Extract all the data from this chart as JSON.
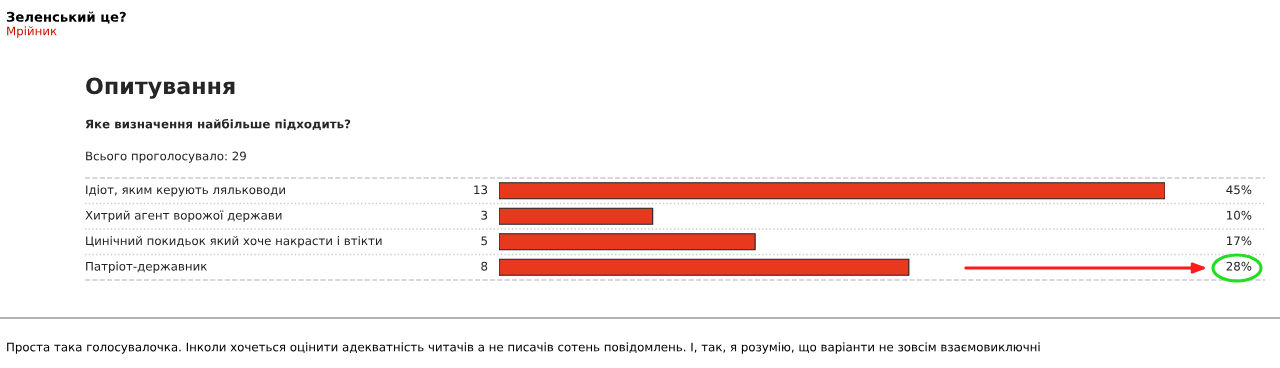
{
  "chart_data": {
    "type": "bar",
    "orientation": "horizontal",
    "title": "Опитування",
    "subtitle": "Яке визначення найбільше підходить?",
    "categories": [
      "Ідіот, яким керують ляльководи",
      "Хитрий агент ворожої держави",
      "Цинічний покидьок який хоче накрасти і втікти",
      "Патріот-державник"
    ],
    "values": [
      13,
      3,
      5,
      8
    ],
    "color": "#e8391f",
    "data_labels": true,
    "annotations": [
      "Зеленський це?",
      "Мрійник",
      "Всього проголосувало: 29",
      "45%",
      "10%",
      "17%",
      "28%",
      "Проста така голосувалочка. Інколи хочеться оцінити адекватність читачів а не писачів сотень повідомлень. І, так, я розумію, що варіанти не зовсім взаємовиключні"
    ],
    "grid": "y"
  }
}
